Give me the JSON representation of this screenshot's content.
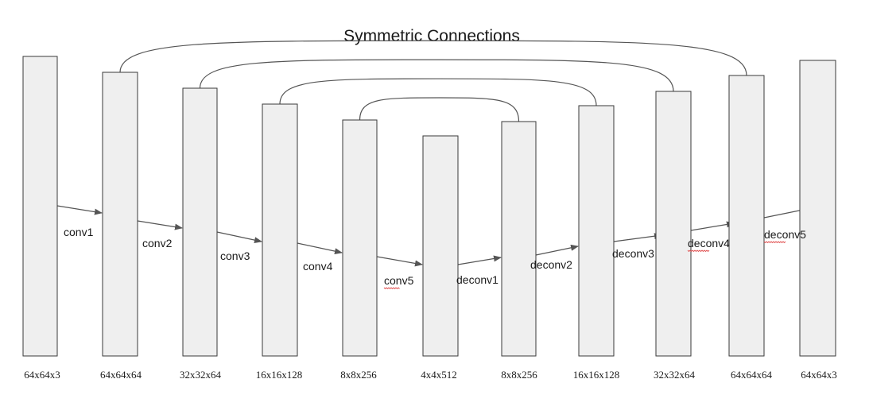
{
  "title": "Symmetric Connections",
  "layers": [
    {
      "size": "64x64x3"
    },
    {
      "size": "64x64x64"
    },
    {
      "size": "32x32x64"
    },
    {
      "size": "16x16x128"
    },
    {
      "size": "8x8x256"
    },
    {
      "size": "4x4x512"
    },
    {
      "size": "8x8x256"
    },
    {
      "size": "16x16x128"
    },
    {
      "size": "32x32x64"
    },
    {
      "size": "64x64x64"
    },
    {
      "size": "64x64x3"
    }
  ],
  "operations": [
    {
      "label": "conv1"
    },
    {
      "label": "conv2"
    },
    {
      "label": "conv3"
    },
    {
      "label": "conv4"
    },
    {
      "label": "conv5"
    },
    {
      "label": "deconv1"
    },
    {
      "label": "deconv2"
    },
    {
      "label": "deconv3"
    },
    {
      "label": "deconv4"
    },
    {
      "label": "deconv5"
    }
  ],
  "skip_connections": [
    {
      "from_layer": 1,
      "to_layer": 9
    },
    {
      "from_layer": 2,
      "to_layer": 8
    },
    {
      "from_layer": 3,
      "to_layer": 7
    },
    {
      "from_layer": 4,
      "to_layer": 6
    }
  ]
}
